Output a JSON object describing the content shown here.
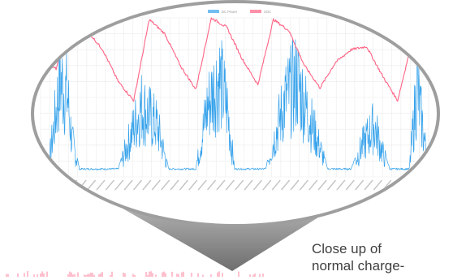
{
  "caption": {
    "line1": "Close up of",
    "line2": "normal charge-"
  },
  "colors": {
    "dc_power": "#36a2eb",
    "soc": "#ff6384",
    "grid": "#ebebeb",
    "cone": "#8a8a8a",
    "frame_shadow": "#a6a6a6",
    "caption": "#404040"
  },
  "chart_data": {
    "type": "line",
    "legend_position": "top",
    "grid": true,
    "x_label_count": 42,
    "ylim": [
      0,
      100
    ],
    "yticks": [
      "80",
      "60"
    ],
    "series": [
      {
        "name": "DC Power",
        "color": "#36a2eb",
        "kind": "spiky",
        "x": [
          0,
          0.02,
          0.035,
          0.05,
          0.07,
          0.08,
          0.1,
          0.12,
          0.15,
          0.2,
          0.23,
          0.26,
          0.3,
          0.33,
          0.36,
          0.4,
          0.43,
          0.46,
          0.48,
          0.5,
          0.53,
          0.58,
          0.63,
          0.66,
          0.7,
          0.74,
          0.78,
          0.8,
          0.83,
          0.86,
          0.88,
          0.9,
          0.93,
          0.95,
          0.97,
          1.0
        ],
        "values": [
          6,
          8,
          40,
          76,
          62,
          30,
          5,
          5,
          5,
          5,
          30,
          55,
          40,
          5,
          5,
          5,
          55,
          78,
          55,
          5,
          5,
          5,
          60,
          75,
          40,
          5,
          5,
          5,
          25,
          40,
          20,
          5,
          5,
          5,
          70,
          5
        ]
      },
      {
        "name": "SOC",
        "color": "#ff6384",
        "kind": "smooth",
        "x": [
          0,
          0.04,
          0.08,
          0.12,
          0.16,
          0.2,
          0.24,
          0.28,
          0.32,
          0.36,
          0.4,
          0.44,
          0.48,
          0.52,
          0.56,
          0.6,
          0.64,
          0.68,
          0.72,
          0.76,
          0.8,
          0.84,
          0.88,
          0.92,
          0.96,
          1.0
        ],
        "values": [
          72,
          68,
          98,
          92,
          80,
          60,
          48,
          99,
          90,
          70,
          55,
          100,
          94,
          74,
          58,
          99,
          92,
          70,
          56,
          72,
          80,
          82,
          64,
          48,
          88,
          80
        ]
      }
    ],
    "bottom_strip": {
      "color": "#ff6384",
      "note": "partial zoomed-out chart strip at bottom"
    }
  }
}
